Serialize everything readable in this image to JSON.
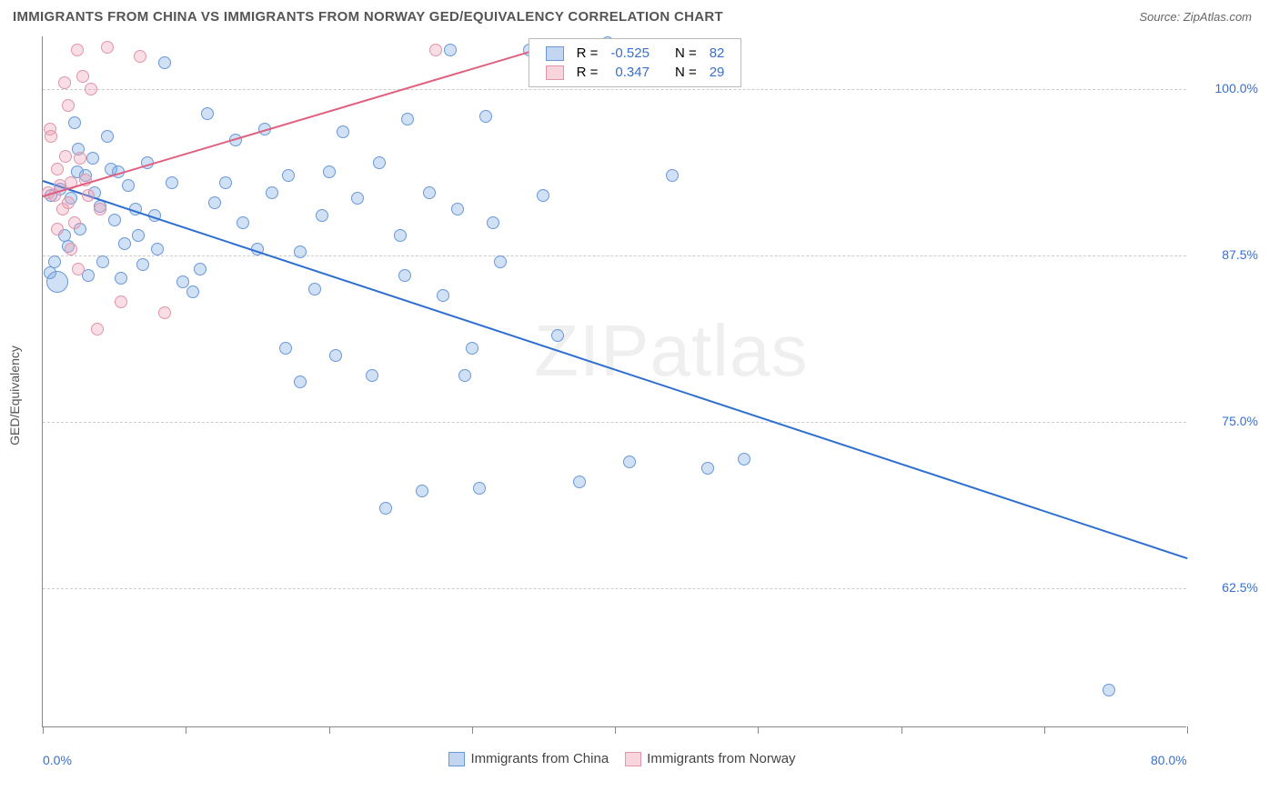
{
  "title": "IMMIGRANTS FROM CHINA VS IMMIGRANTS FROM NORWAY GED/EQUIVALENCY CORRELATION CHART",
  "source": "Source: ZipAtlas.com",
  "watermark": "ZIPatlas",
  "chart": {
    "type": "scatter",
    "xlim": [
      0,
      80
    ],
    "ylim": [
      52,
      104
    ],
    "y_axis_label": "GED/Equivalency",
    "x_ticks": [
      0,
      10,
      20,
      30,
      40,
      50,
      60,
      70,
      80
    ],
    "x_tick_labels": {
      "0": "0.0%",
      "80": "80.0%"
    },
    "y_ticks": [
      62.5,
      75.0,
      87.5,
      100.0
    ],
    "y_tick_labels": [
      "62.5%",
      "75.0%",
      "87.5%",
      "100.0%"
    ],
    "grid_color": "#cccccc",
    "axis_color": "#888888",
    "tick_label_color": "#3b6fc9",
    "background_color": "#ffffff",
    "marker_radius": 7,
    "series": [
      {
        "name": "Immigrants from China",
        "fill": "rgba(120,165,225,0.35)",
        "stroke": "#6a99d8",
        "trend_color": "#2f6fd0",
        "correlation": -0.525,
        "n": 82,
        "trend": {
          "x1": 0,
          "y1": 93.2,
          "x2": 80,
          "y2": 64.8
        },
        "points": [
          [
            0.5,
            86.2
          ],
          [
            0.8,
            87.0
          ],
          [
            0.6,
            92.0
          ],
          [
            1.0,
            85.5,
            12
          ],
          [
            1.2,
            92.5
          ],
          [
            1.5,
            89.0
          ],
          [
            1.8,
            88.2
          ],
          [
            2.0,
            91.8
          ],
          [
            2.2,
            97.5
          ],
          [
            2.4,
            93.8
          ],
          [
            2.5,
            95.5
          ],
          [
            2.6,
            89.5
          ],
          [
            3.0,
            93.5
          ],
          [
            3.2,
            86.0
          ],
          [
            3.5,
            94.8
          ],
          [
            3.6,
            92.2
          ],
          [
            4.0,
            91.2
          ],
          [
            4.2,
            87.0
          ],
          [
            4.5,
            96.5
          ],
          [
            4.8,
            94.0
          ],
          [
            5.0,
            90.2
          ],
          [
            5.3,
            93.8
          ],
          [
            5.5,
            85.8
          ],
          [
            5.7,
            88.4
          ],
          [
            6.0,
            92.8
          ],
          [
            6.5,
            91.0
          ],
          [
            6.7,
            89.0
          ],
          [
            7.0,
            86.8
          ],
          [
            7.3,
            94.5
          ],
          [
            7.8,
            90.5
          ],
          [
            8.0,
            88.0
          ],
          [
            8.5,
            102.0
          ],
          [
            9.0,
            93.0
          ],
          [
            9.8,
            85.5
          ],
          [
            10.5,
            84.8
          ],
          [
            11.0,
            86.5
          ],
          [
            11.5,
            98.2
          ],
          [
            12.0,
            91.5
          ],
          [
            12.8,
            93.0
          ],
          [
            13.5,
            96.2
          ],
          [
            14.0,
            90.0
          ],
          [
            15.0,
            88.0
          ],
          [
            15.5,
            97.0
          ],
          [
            16.0,
            92.2
          ],
          [
            17.0,
            80.5
          ],
          [
            17.2,
            93.5
          ],
          [
            18.0,
            78.0
          ],
          [
            18.0,
            87.8
          ],
          [
            19.0,
            85.0
          ],
          [
            19.5,
            90.5
          ],
          [
            20.0,
            93.8
          ],
          [
            20.5,
            80.0
          ],
          [
            21.0,
            96.8
          ],
          [
            22.0,
            91.8
          ],
          [
            23.0,
            78.5
          ],
          [
            23.5,
            94.5
          ],
          [
            24.0,
            68.5
          ],
          [
            25.0,
            89.0
          ],
          [
            25.3,
            86.0
          ],
          [
            25.5,
            97.8
          ],
          [
            26.5,
            69.8
          ],
          [
            27.0,
            92.2
          ],
          [
            28.5,
            103.0
          ],
          [
            28.0,
            84.5
          ],
          [
            29.0,
            91.0
          ],
          [
            29.5,
            78.5
          ],
          [
            30.0,
            80.5
          ],
          [
            30.5,
            70.0
          ],
          [
            31.0,
            98.0
          ],
          [
            31.5,
            90.0
          ],
          [
            32.0,
            87.0
          ],
          [
            34.0,
            103.0
          ],
          [
            35.0,
            92.0
          ],
          [
            35.5,
            101.8
          ],
          [
            36.0,
            81.5
          ],
          [
            37.5,
            70.5
          ],
          [
            39.5,
            103.5
          ],
          [
            41.0,
            72.0
          ],
          [
            44.0,
            93.5
          ],
          [
            46.5,
            71.5
          ],
          [
            49.0,
            72.2
          ],
          [
            74.5,
            54.8
          ]
        ]
      },
      {
        "name": "Immigrants from Norway",
        "fill": "rgba(240,160,180,0.35)",
        "stroke": "#e195aa",
        "trend_color": "#e0607f",
        "correlation": 0.347,
        "n": 29,
        "trend": {
          "x1": 0,
          "y1": 92.0,
          "x2": 36,
          "y2": 103.5
        },
        "points": [
          [
            0.4,
            92.2
          ],
          [
            0.5,
            97.0
          ],
          [
            0.6,
            96.5
          ],
          [
            0.8,
            92.0
          ],
          [
            1.0,
            89.5
          ],
          [
            1.0,
            94.0
          ],
          [
            1.2,
            92.8
          ],
          [
            1.4,
            91.0
          ],
          [
            1.5,
            100.5
          ],
          [
            1.6,
            95.0
          ],
          [
            1.8,
            91.5
          ],
          [
            1.8,
            98.8
          ],
          [
            2.0,
            88.0
          ],
          [
            2.0,
            93.0
          ],
          [
            2.2,
            90.0
          ],
          [
            2.4,
            103.0
          ],
          [
            2.5,
            86.5
          ],
          [
            2.6,
            94.8
          ],
          [
            2.8,
            101.0
          ],
          [
            3.0,
            93.2
          ],
          [
            3.2,
            92.0
          ],
          [
            3.4,
            100.0
          ],
          [
            3.8,
            82.0
          ],
          [
            4.0,
            91.0
          ],
          [
            4.5,
            103.2
          ],
          [
            5.5,
            84.0
          ],
          [
            6.8,
            102.5
          ],
          [
            8.5,
            83.2
          ],
          [
            27.5,
            103.0
          ]
        ]
      }
    ]
  },
  "legend_top": {
    "rows": [
      {
        "swatch_fill": "rgba(120,165,225,0.45)",
        "swatch_stroke": "#6a99d8",
        "r_label": "R =",
        "r_val": "-0.525",
        "n_label": "N =",
        "n_val": "82"
      },
      {
        "swatch_fill": "rgba(240,160,180,0.45)",
        "swatch_stroke": "#e195aa",
        "r_label": "R =",
        "r_val": "0.347",
        "n_label": "N =",
        "n_val": "29"
      }
    ]
  },
  "legend_bottom": {
    "items": [
      {
        "swatch_fill": "rgba(120,165,225,0.45)",
        "swatch_stroke": "#6a99d8",
        "label": "Immigrants from China"
      },
      {
        "swatch_fill": "rgba(240,160,180,0.45)",
        "swatch_stroke": "#e195aa",
        "label": "Immigrants from Norway"
      }
    ]
  }
}
